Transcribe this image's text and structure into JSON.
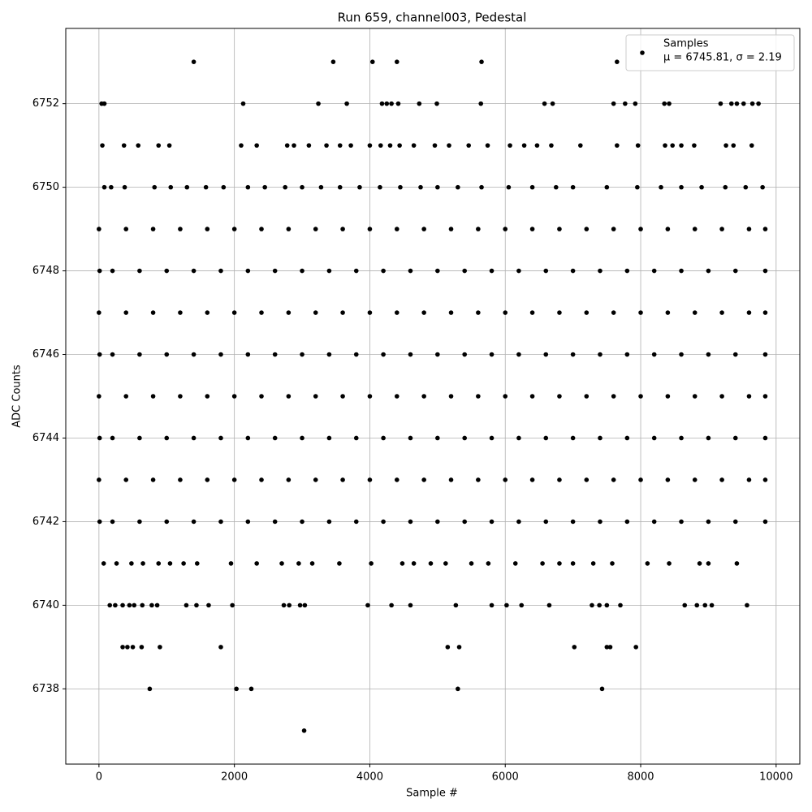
{
  "chart_data": {
    "type": "scatter",
    "title": "Run 659, channel003, Pedestal",
    "xlabel": "Sample #",
    "ylabel": "ADC Counts",
    "xlim": [
      -490,
      10350
    ],
    "ylim": [
      6736.2,
      6753.8
    ],
    "xticks": [
      0,
      2000,
      4000,
      6000,
      8000,
      10000
    ],
    "yticks": [
      6738,
      6740,
      6742,
      6744,
      6746,
      6748,
      6750,
      6752
    ],
    "grid": true,
    "legend": "upper right",
    "annotation": "μ = 6745.81, σ = 2.19",
    "series": [
      {
        "name": "Samples",
        "color": "#000000",
        "x": [
          1400,
          3460,
          4040,
          4400,
          5650,
          7650,
          40,
          80,
          2130,
          3240,
          3660,
          4180,
          4250,
          4320,
          4420,
          4730,
          4990,
          5640,
          6580,
          6700,
          7600,
          7770,
          7920,
          8350,
          8420,
          9180,
          9340,
          9420,
          9520,
          9650,
          9740,
          50,
          370,
          580,
          880,
          1040,
          2100,
          2330,
          2780,
          2880,
          3100,
          3360,
          3560,
          3720,
          4000,
          4160,
          4300,
          4440,
          4650,
          4960,
          5170,
          5460,
          5740,
          6070,
          6280,
          6470,
          6680,
          7110,
          7650,
          7960,
          8360,
          8470,
          8600,
          8790,
          9260,
          9370,
          9640,
          80,
          180,
          380,
          820,
          1060,
          1300,
          1580,
          1840,
          2200,
          2450,
          2750,
          3000,
          3280,
          3560,
          3850,
          4150,
          4450,
          4750,
          5000,
          5300,
          5650,
          6050,
          6400,
          6750,
          7000,
          7500,
          7950,
          8300,
          8600,
          8900,
          9250,
          9550,
          9800,
          0,
          400,
          800,
          1200,
          1600,
          2000,
          2400,
          2800,
          3200,
          3600,
          4000,
          4400,
          4800,
          5200,
          5600,
          6000,
          6400,
          6800,
          7200,
          7600,
          8000,
          8400,
          8800,
          9200,
          9600,
          9840,
          10,
          200,
          600,
          1000,
          1400,
          1800,
          2200,
          2600,
          3000,
          3400,
          3800,
          4200,
          4600,
          5000,
          5400,
          5800,
          6200,
          6600,
          7000,
          7400,
          7800,
          8200,
          8600,
          9000,
          9400,
          9840,
          0,
          400,
          800,
          1200,
          1600,
          2000,
          2400,
          2800,
          3200,
          3600,
          4000,
          4400,
          4800,
          5200,
          5600,
          6000,
          6400,
          6800,
          7200,
          7600,
          8000,
          8400,
          8800,
          9200,
          9600,
          9840,
          10,
          200,
          600,
          1000,
          1400,
          1800,
          2200,
          2600,
          3000,
          3400,
          3800,
          4200,
          4600,
          5000,
          5400,
          5800,
          6200,
          6600,
          7000,
          7400,
          7800,
          8200,
          8600,
          9000,
          9400,
          9840,
          0,
          400,
          800,
          1200,
          1600,
          2000,
          2400,
          2800,
          3200,
          3600,
          4000,
          4400,
          4800,
          5200,
          5600,
          6000,
          6400,
          6800,
          7200,
          7600,
          8000,
          8400,
          8800,
          9200,
          9600,
          9840,
          10,
          200,
          600,
          1000,
          1400,
          1800,
          2200,
          2600,
          3000,
          3400,
          3800,
          4200,
          4600,
          5000,
          5400,
          5800,
          6200,
          6600,
          7000,
          7400,
          7800,
          8200,
          8600,
          9000,
          9400,
          9840,
          0,
          400,
          800,
          1200,
          1600,
          2000,
          2400,
          2800,
          3200,
          3600,
          4000,
          4400,
          4800,
          5200,
          5600,
          6000,
          6400,
          6800,
          7200,
          7600,
          8000,
          8400,
          8800,
          9200,
          9600,
          9840,
          10,
          200,
          600,
          1000,
          1400,
          1800,
          2200,
          2600,
          3000,
          3400,
          3800,
          4200,
          4600,
          5000,
          5400,
          5800,
          6200,
          6600,
          7000,
          7400,
          7800,
          8200,
          8600,
          9000,
          9400,
          9840,
          70,
          260,
          480,
          650,
          880,
          1050,
          1250,
          1450,
          1950,
          2330,
          2700,
          2950,
          3150,
          3550,
          4020,
          4480,
          4650,
          4900,
          5120,
          5500,
          5750,
          6150,
          6550,
          6800,
          7000,
          7300,
          7580,
          8100,
          8420,
          8870,
          9000,
          9420,
          160,
          240,
          350,
          450,
          520,
          640,
          780,
          860,
          1290,
          1440,
          1620,
          1970,
          2730,
          2810,
          2970,
          3040,
          3970,
          4320,
          4600,
          5270,
          5800,
          6020,
          6240,
          6650,
          7280,
          7390,
          7500,
          7700,
          8650,
          8830,
          8950,
          9050,
          9570,
          350,
          420,
          500,
          630,
          900,
          1800,
          5150,
          5320,
          7020,
          7500,
          7550,
          7930,
          750,
          2030,
          2250,
          5300,
          7430,
          3030
        ],
        "values": [
          6753,
          6753,
          6753,
          6753,
          6753,
          6753,
          6752,
          6752,
          6752,
          6752,
          6752,
          6752,
          6752,
          6752,
          6752,
          6752,
          6752,
          6752,
          6752,
          6752,
          6752,
          6752,
          6752,
          6752,
          6752,
          6752,
          6752,
          6752,
          6752,
          6752,
          6752,
          6751,
          6751,
          6751,
          6751,
          6751,
          6751,
          6751,
          6751,
          6751,
          6751,
          6751,
          6751,
          6751,
          6751,
          6751,
          6751,
          6751,
          6751,
          6751,
          6751,
          6751,
          6751,
          6751,
          6751,
          6751,
          6751,
          6751,
          6751,
          6751,
          6751,
          6751,
          6751,
          6751,
          6751,
          6751,
          6751,
          6750,
          6750,
          6750,
          6750,
          6750,
          6750,
          6750,
          6750,
          6750,
          6750,
          6750,
          6750,
          6750,
          6750,
          6750,
          6750,
          6750,
          6750,
          6750,
          6750,
          6750,
          6750,
          6750,
          6750,
          6750,
          6750,
          6750,
          6750,
          6750,
          6750,
          6750,
          6750,
          6750,
          6749,
          6749,
          6749,
          6749,
          6749,
          6749,
          6749,
          6749,
          6749,
          6749,
          6749,
          6749,
          6749,
          6749,
          6749,
          6749,
          6749,
          6749,
          6749,
          6749,
          6749,
          6749,
          6749,
          6749,
          6749,
          6749,
          6748,
          6748,
          6748,
          6748,
          6748,
          6748,
          6748,
          6748,
          6748,
          6748,
          6748,
          6748,
          6748,
          6748,
          6748,
          6748,
          6748,
          6748,
          6748,
          6748,
          6748,
          6748,
          6748,
          6748,
          6748,
          6748,
          6747,
          6747,
          6747,
          6747,
          6747,
          6747,
          6747,
          6747,
          6747,
          6747,
          6747,
          6747,
          6747,
          6747,
          6747,
          6747,
          6747,
          6747,
          6747,
          6747,
          6747,
          6747,
          6747,
          6747,
          6747,
          6747,
          6746,
          6746,
          6746,
          6746,
          6746,
          6746,
          6746,
          6746,
          6746,
          6746,
          6746,
          6746,
          6746,
          6746,
          6746,
          6746,
          6746,
          6746,
          6746,
          6746,
          6746,
          6746,
          6746,
          6746,
          6746,
          6746,
          6745,
          6745,
          6745,
          6745,
          6745,
          6745,
          6745,
          6745,
          6745,
          6745,
          6745,
          6745,
          6745,
          6745,
          6745,
          6745,
          6745,
          6745,
          6745,
          6745,
          6745,
          6745,
          6745,
          6745,
          6745,
          6745,
          6744,
          6744,
          6744,
          6744,
          6744,
          6744,
          6744,
          6744,
          6744,
          6744,
          6744,
          6744,
          6744,
          6744,
          6744,
          6744,
          6744,
          6744,
          6744,
          6744,
          6744,
          6744,
          6744,
          6744,
          6744,
          6744,
          6743,
          6743,
          6743,
          6743,
          6743,
          6743,
          6743,
          6743,
          6743,
          6743,
          6743,
          6743,
          6743,
          6743,
          6743,
          6743,
          6743,
          6743,
          6743,
          6743,
          6743,
          6743,
          6743,
          6743,
          6743,
          6743,
          6742,
          6742,
          6742,
          6742,
          6742,
          6742,
          6742,
          6742,
          6742,
          6742,
          6742,
          6742,
          6742,
          6742,
          6742,
          6742,
          6742,
          6742,
          6742,
          6742,
          6742,
          6742,
          6742,
          6742,
          6742,
          6742,
          6741,
          6741,
          6741,
          6741,
          6741,
          6741,
          6741,
          6741,
          6741,
          6741,
          6741,
          6741,
          6741,
          6741,
          6741,
          6741,
          6741,
          6741,
          6741,
          6741,
          6741,
          6741,
          6741,
          6741,
          6741,
          6741,
          6741,
          6741,
          6741,
          6741,
          6741,
          6741,
          6740,
          6740,
          6740,
          6740,
          6740,
          6740,
          6740,
          6740,
          6740,
          6740,
          6740,
          6740,
          6740,
          6740,
          6740,
          6740,
          6740,
          6740,
          6740,
          6740,
          6740,
          6740,
          6740,
          6740,
          6740,
          6740,
          6740,
          6740,
          6740,
          6740,
          6740,
          6740,
          6740,
          6739,
          6739,
          6739,
          6739,
          6739,
          6739,
          6739,
          6739,
          6739,
          6739,
          6739,
          6739,
          6738,
          6738,
          6738,
          6738,
          6738,
          6737
        ]
      }
    ]
  }
}
